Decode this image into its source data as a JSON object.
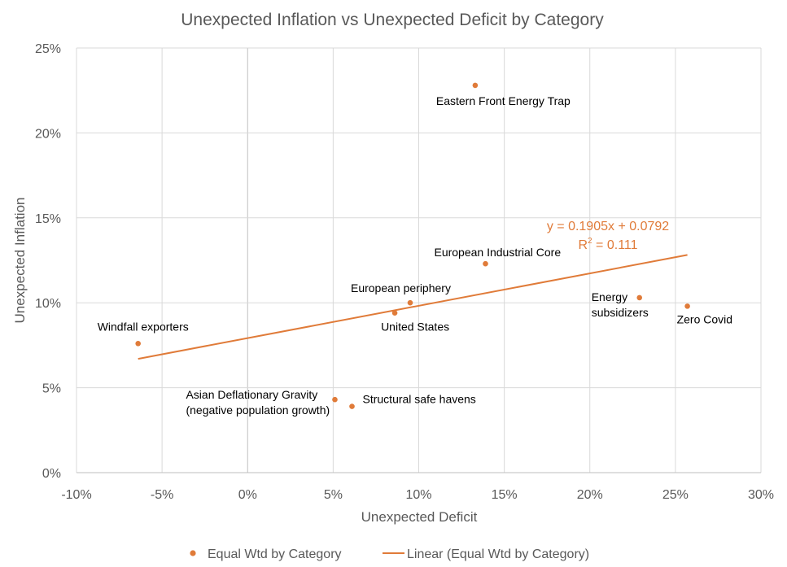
{
  "chart_data": {
    "type": "scatter",
    "title": "Unexpected Inflation vs Unexpected Deficit by Category",
    "xlabel": "Unexpected Deficit",
    "ylabel": "Unexpected Inflation",
    "xlim": [
      -0.1,
      0.3
    ],
    "ylim": [
      0.0,
      0.25
    ],
    "x_ticks": [
      -0.1,
      -0.05,
      0.0,
      0.05,
      0.1,
      0.15,
      0.2,
      0.25,
      0.3
    ],
    "x_tick_labels": [
      "-10%",
      "-5%",
      "0%",
      "5%",
      "10%",
      "15%",
      "20%",
      "25%",
      "30%"
    ],
    "y_ticks": [
      0.0,
      0.05,
      0.1,
      0.15,
      0.2,
      0.25
    ],
    "y_tick_labels": [
      "0%",
      "5%",
      "10%",
      "15%",
      "20%",
      "25%"
    ],
    "grid": true,
    "color": "#E07B39",
    "series": [
      {
        "name": "Equal Wtd by Category",
        "points": [
          {
            "label": "Eastern Front Energy Trap",
            "lines": [
              "Eastern Front Energy Trap"
            ],
            "x": 0.133,
            "y": 0.228
          },
          {
            "label": "European Industrial Core",
            "lines": [
              "European Industrial Core"
            ],
            "x": 0.139,
            "y": 0.123
          },
          {
            "label": "European periphery",
            "lines": [
              "European periphery"
            ],
            "x": 0.095,
            "y": 0.1
          },
          {
            "label": "United States",
            "lines": [
              "United States"
            ],
            "x": 0.086,
            "y": 0.094
          },
          {
            "label": "Windfall exporters",
            "lines": [
              "Windfall exporters"
            ],
            "x": -0.064,
            "y": 0.076
          },
          {
            "label": "Energy subsidizers",
            "lines": [
              "Energy",
              "subsidizers"
            ],
            "x": 0.229,
            "y": 0.103
          },
          {
            "label": "Zero Covid",
            "lines": [
              "Zero Covid"
            ],
            "x": 0.257,
            "y": 0.098
          },
          {
            "label": "Asian Deflationary Gravity (negative population growth)",
            "lines": [
              "Asian Deflationary Gravity",
              "(negative population growth)"
            ],
            "x": 0.051,
            "y": 0.043
          },
          {
            "label": "Structural safe havens",
            "lines": [
              "Structural safe havens"
            ],
            "x": 0.061,
            "y": 0.039
          }
        ]
      }
    ],
    "trendline": {
      "name": "Linear (Equal Wtd by Category)",
      "slope": 0.1905,
      "intercept": 0.0792,
      "x_range": [
        -0.064,
        0.257
      ],
      "equation": "y = 0.1905x + 0.0792",
      "r2_prefix": "R",
      "r2_exp": "2",
      "r2_value": " = 0.111"
    },
    "legend": {
      "position": "bottom",
      "entries": [
        "Equal Wtd by Category",
        "Linear (Equal Wtd by Category)"
      ]
    }
  }
}
